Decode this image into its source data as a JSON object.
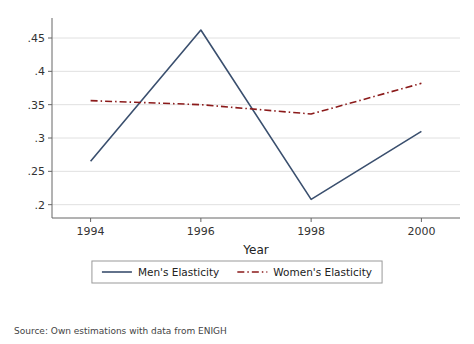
{
  "chart_data": {
    "type": "line",
    "x": [
      1994,
      1996,
      1998,
      2000
    ],
    "xlabel": "Year",
    "series": [
      {
        "name": "Men's Elasticity",
        "color": "#3a4f6e",
        "line_style": "solid",
        "values": [
          0.265,
          0.462,
          0.208,
          0.31
        ]
      },
      {
        "name": "Women's Elasticity",
        "color": "#8b1a1a",
        "line_style": "dashdot",
        "values": [
          0.356,
          0.35,
          0.336,
          0.382
        ]
      }
    ],
    "xlim": [
      1993.3,
      2000.7
    ],
    "xticks": [
      1994,
      1996,
      1998,
      2000
    ],
    "ylim": [
      0.18,
      0.48
    ],
    "yticks": [
      {
        "value": 0.2,
        "label": ".2"
      },
      {
        "value": 0.25,
        "label": ".25"
      },
      {
        "value": 0.3,
        "label": ".3"
      },
      {
        "value": 0.35,
        "label": ".35"
      },
      {
        "value": 0.4,
        "label": ".4"
      },
      {
        "value": 0.45,
        "label": ".45"
      }
    ],
    "grid": true,
    "legend": "bottom",
    "annotations": [
      "Source: Own estimations with data from ENIGH"
    ]
  }
}
